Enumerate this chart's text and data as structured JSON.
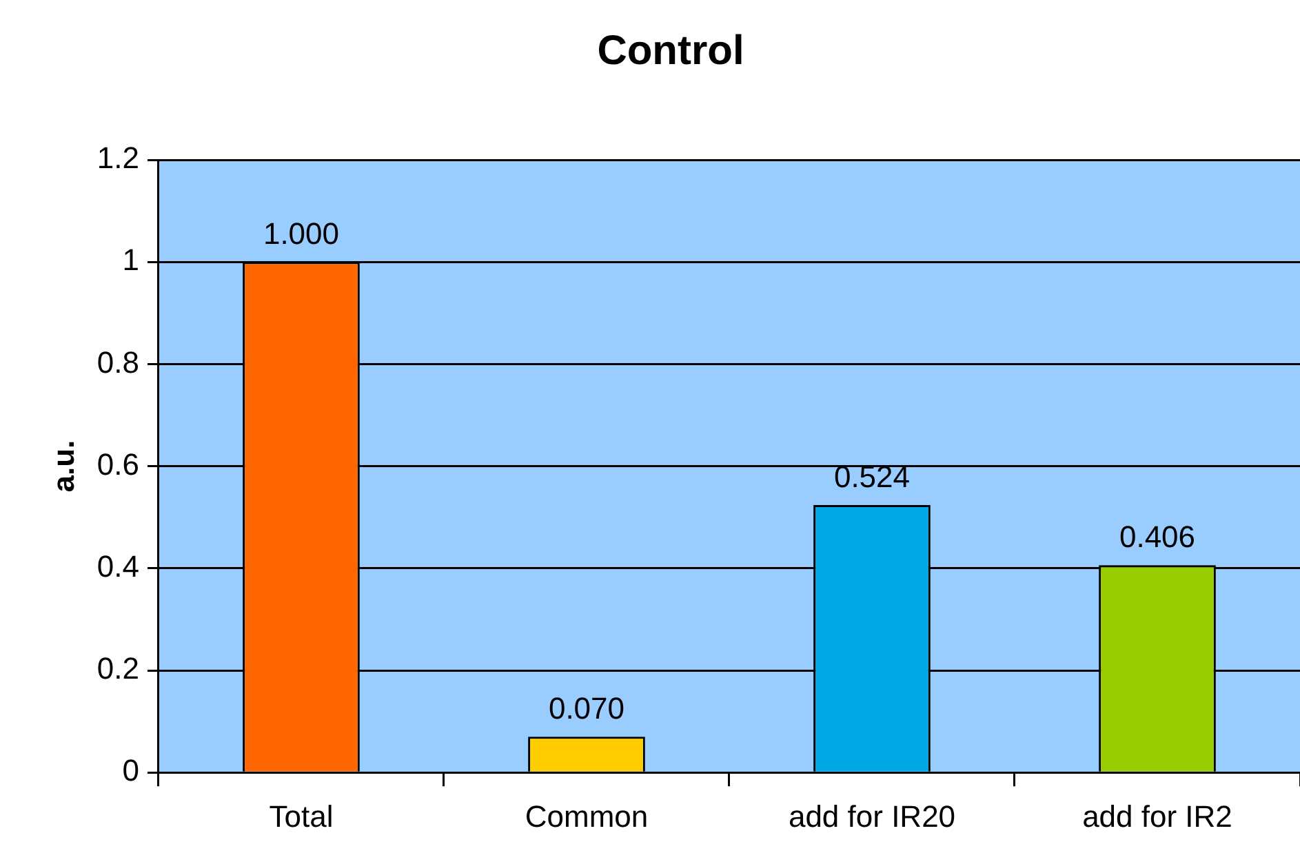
{
  "chart_data": {
    "type": "bar",
    "title": "Control",
    "ylabel": "a.u.",
    "categories": [
      "Total",
      "Common",
      "add for IR20",
      "add for IR2"
    ],
    "values": [
      1.0,
      0.07,
      0.524,
      0.406
    ],
    "colors": [
      "#ff6600",
      "#ffcc00",
      "#00a8e6",
      "#99cc00"
    ],
    "value_labels": [
      "1.000",
      "0.070",
      "0.524",
      "0.406"
    ],
    "ylim": [
      0,
      1.2
    ],
    "yticks": [
      0,
      0.2,
      0.4,
      0.6,
      0.8,
      1,
      1.2
    ],
    "grid": "y",
    "legend": false
  }
}
